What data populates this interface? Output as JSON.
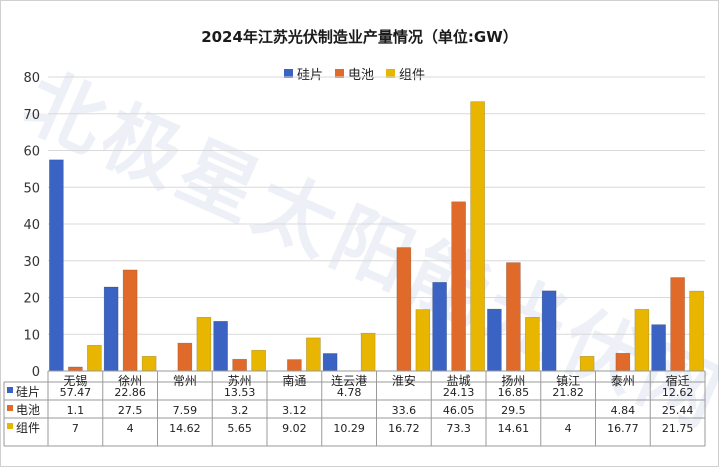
{
  "chart_data": {
    "type": "bar",
    "title": "2024年江苏光伏制造业产量情况（单位:GW）",
    "ylim": [
      0,
      80
    ],
    "yticks": [
      "0",
      "10",
      "20",
      "30",
      "40",
      "50",
      "60",
      "70",
      "80"
    ],
    "grid": true,
    "legend_position": "top",
    "categories": [
      "无锡",
      "徐州",
      "常州",
      "苏州",
      "南通",
      "连云港",
      "淮安",
      "盐城",
      "扬州",
      "镇江",
      "泰州",
      "宿迁"
    ],
    "series": [
      {
        "name": "硅片",
        "color": "#3a63c4",
        "values": [
          57.47,
          22.86,
          null,
          13.53,
          null,
          4.78,
          null,
          24.13,
          16.85,
          21.82,
          null,
          12.62
        ],
        "labels": [
          "57.47",
          "22.86",
          "",
          "13.53",
          "",
          "4.78",
          "",
          "24.13",
          "16.85",
          "21.82",
          "",
          "12.62"
        ]
      },
      {
        "name": "电池",
        "color": "#e06a2a",
        "values": [
          1.1,
          27.5,
          7.59,
          3.2,
          3.12,
          null,
          33.6,
          46.05,
          29.5,
          null,
          4.84,
          25.44
        ],
        "labels": [
          "1.1",
          "27.5",
          "7.59",
          "3.2",
          "3.12",
          "",
          "33.6",
          "46.05",
          "29.5",
          "",
          "4.84",
          "25.44"
        ]
      },
      {
        "name": "组件",
        "color": "#e8b600",
        "values": [
          7,
          4,
          14.62,
          5.65,
          9.02,
          10.29,
          16.72,
          73.3,
          14.61,
          4,
          16.77,
          21.75
        ],
        "labels": [
          "7",
          "4",
          "14.62",
          "5.65",
          "9.02",
          "10.29",
          "16.72",
          "73.3",
          "14.61",
          "4",
          "16.77",
          "21.75"
        ]
      }
    ]
  },
  "watermark": "北极星太阳能光伏网"
}
